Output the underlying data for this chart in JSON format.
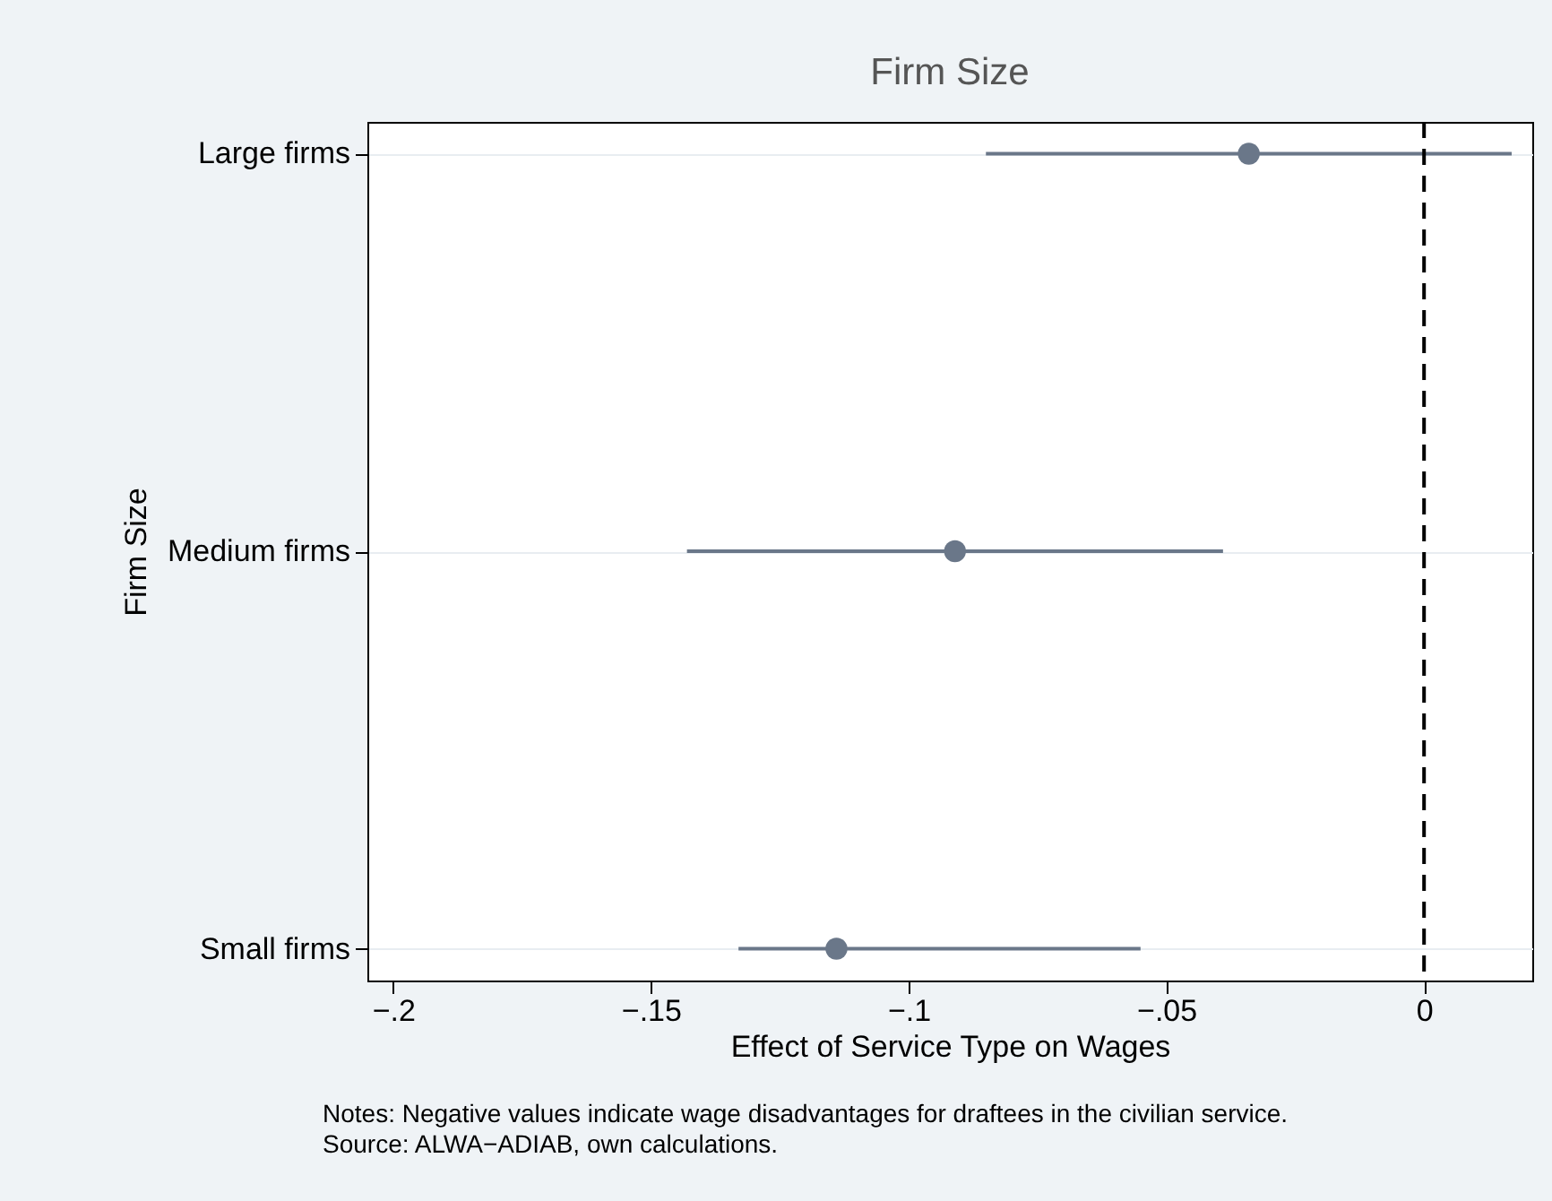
{
  "chart_data": {
    "type": "scatter",
    "orientation": "horizontal",
    "title": "Firm Size",
    "xlabel": "Effect of Service Type on Wages",
    "ylabel": "Firm Size",
    "categories": [
      "Large firms",
      "Medium firms",
      "Small firms"
    ],
    "values": [
      -0.034,
      -0.091,
      -0.114
    ],
    "errors": [
      [
        -0.085,
        0.017
      ],
      [
        -0.143,
        -0.039
      ],
      [
        -0.133,
        -0.055
      ]
    ],
    "color": "#6a7789",
    "marker": "circle",
    "xlim": [
      -0.205,
      0.021
    ],
    "xticks": [
      {
        "value": -0.2,
        "label": "−.2"
      },
      {
        "value": -0.15,
        "label": "−.15"
      },
      {
        "value": -0.1,
        "label": "−.1"
      },
      {
        "value": -0.05,
        "label": "−.05"
      },
      0
    ],
    "ref_lines": [
      {
        "axis": "x",
        "value": 0,
        "color": "#000000",
        "line_style": "dashed"
      }
    ],
    "grid": "y",
    "annotations": [
      "Notes: Negative values indicate wage disadvantages for draftees in the civilian service.",
      "Source: ALWA−ADIAB, own calculations."
    ]
  }
}
